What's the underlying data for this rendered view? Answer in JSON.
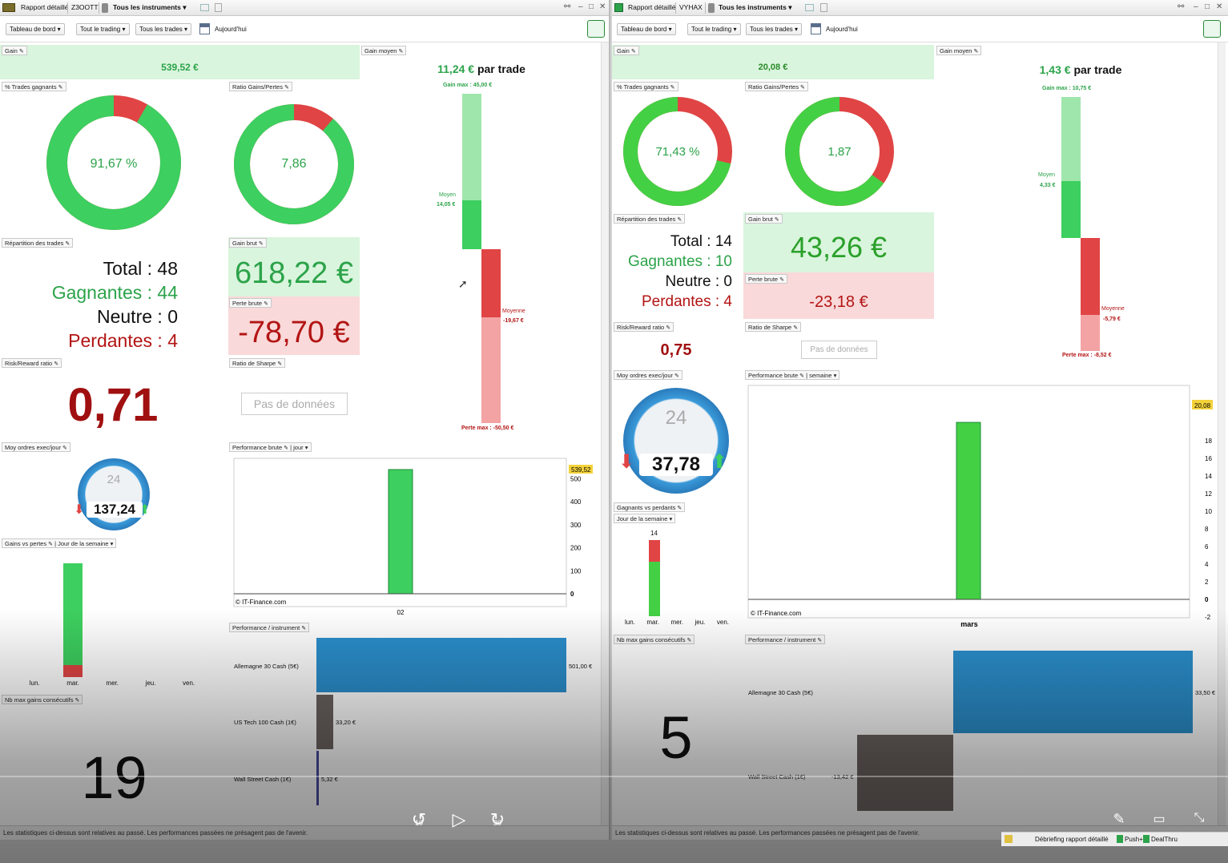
{
  "left": {
    "tab_title": "Rapport détaillé",
    "account": "Z3OOTT",
    "instrument_filter": "Tous les instruments",
    "toolbar": {
      "dashboard": "Tableau de bord",
      "trading": "Tout le trading",
      "trades": "Tous les trades",
      "date": "Aujourd'hui"
    },
    "gain": {
      "label": "Gain",
      "value": "539,52 €"
    },
    "pct_win": {
      "label": "% Trades gagnants",
      "value": "91,67 %",
      "fraction": 0.9167
    },
    "ratio": {
      "label": "Ratio Gains/Pertes",
      "value": "7,86",
      "fraction": 0.887
    },
    "avg_gain": {
      "label": "Gain moyen",
      "value": "11,24 €",
      "suffix": "par trade",
      "max_label": "Gain max : 45,00 €",
      "avg_label": "Moyen",
      "avg_value": "14,05 €",
      "loss_avg_label": "Moyenne",
      "loss_avg_value": "-19,67 €",
      "loss_max_label": "Perte max : -50,50 €"
    },
    "repartition": {
      "label": "Répartition des trades",
      "total_label": "Total",
      "total": "48",
      "win_label": "Gagnantes",
      "win": "44",
      "neutral_label": "Neutre",
      "neutral": "0",
      "loss_label": "Perdantes",
      "loss": "4"
    },
    "gross_gain": {
      "label": "Gain brut",
      "value": "618,22 €"
    },
    "gross_loss": {
      "label": "Perte brute",
      "value": "-78,70 €"
    },
    "rr": {
      "label": "Risk/Reward ratio",
      "value": "0,71"
    },
    "sharpe": {
      "label": "Ratio de Sharpe",
      "value": "Pas de données"
    },
    "orders": {
      "label": "Moy ordres exec/jour",
      "value": "137,24",
      "gauge": "24"
    },
    "perf": {
      "label": "Performance brute",
      "period": "jour",
      "last_value": "539,52",
      "ticks": [
        "500",
        "400",
        "300",
        "200",
        "100",
        "0"
      ],
      "x": [
        "02"
      ],
      "credit": "© IT-Finance.com"
    },
    "gvp": {
      "label": "Gains vs pertes",
      "sel": "Jour de la semaine",
      "days": [
        "lun.",
        "mar.",
        "mer.",
        "jeu.",
        "ven."
      ]
    },
    "maxwins": {
      "label": "Nb max gains consécutifs",
      "value": "19"
    },
    "perf_instr": {
      "label": "Performance / instrument",
      "rows": [
        {
          "name": "Allemagne 30 Cash (5€)",
          "value": "501,00 €"
        },
        {
          "name": "US Tech 100 Cash (1€)",
          "value": "33,20 €"
        },
        {
          "name": "Wall Street Cash (1€)",
          "value": "5,32 €"
        }
      ]
    },
    "disclaimer": "Les statistiques ci-dessus sont relatives au passé. Les performances passées ne présagent pas de l'avenir."
  },
  "right": {
    "tab_title": "Rapport détaillé",
    "account": "VYHAX",
    "instrument_filter": "Tous les instruments",
    "toolbar": {
      "dashboard": "Tableau de bord",
      "trading": "Tout le trading",
      "trades": "Tous les trades",
      "date": "Aujourd'hui"
    },
    "gain": {
      "label": "Gain",
      "value": "20,08 €"
    },
    "pct_win": {
      "label": "% Trades gagnants",
      "value": "71,43 %",
      "fraction": 0.7143
    },
    "ratio": {
      "label": "Ratio Gains/Pertes",
      "value": "1,87",
      "fraction": 0.651
    },
    "avg_gain": {
      "label": "Gain moyen",
      "value": "1,43 €",
      "suffix": "par trade",
      "max_label": "Gain max : 10,75 €",
      "avg_label": "Moyen",
      "avg_value": "4,33 €",
      "loss_avg_label": "Moyenne",
      "loss_avg_value": "-5,79 €",
      "loss_max_label": "Perte max : -8,52 €"
    },
    "repartition": {
      "label": "Répartition des trades",
      "total_label": "Total",
      "total": "14",
      "win_label": "Gagnantes",
      "win": "10",
      "neutral_label": "Neutre",
      "neutral": "0",
      "loss_label": "Perdantes",
      "loss": "4"
    },
    "gross_gain": {
      "label": "Gain brut",
      "value": "43,26 €"
    },
    "gross_loss": {
      "label": "Perte brute",
      "value": "-23,18 €"
    },
    "rr": {
      "label": "Risk/Reward ratio",
      "value": "0,75"
    },
    "sharpe": {
      "label": "Ratio de Sharpe",
      "value": "Pas de données"
    },
    "orders": {
      "label": "Moy ordres exec/jour",
      "value": "37,78",
      "gauge": "24"
    },
    "perf": {
      "label": "Performance brute",
      "period": "semaine",
      "last_value": "20,08",
      "ticks": [
        "22",
        "18",
        "16",
        "14",
        "12",
        "10",
        "8",
        "6",
        "4",
        "2",
        "0",
        "-2"
      ],
      "x": [
        "mars"
      ],
      "credit": "© IT-Finance.com"
    },
    "gvp": {
      "label": "Gagnants vs perdants",
      "sel": "Jour de la semaine",
      "top": "14",
      "days": [
        "lun.",
        "mar.",
        "mer.",
        "jeu.",
        "ven."
      ]
    },
    "maxwins": {
      "label": "Nb max gains consécutifs",
      "value": "5"
    },
    "perf_instr": {
      "label": "Performance / instrument",
      "rows": [
        {
          "name": "Allemagne 30 Cash (5€)",
          "value": "33,50 €"
        },
        {
          "name": "Wall Street Cash (1€)",
          "value": "-13,42 €"
        }
      ]
    },
    "disclaimer": "Les statistiques ci-dessus sont relatives au passé. Les performances passées ne présagent pas de l'avenir."
  },
  "chart_data": [
    {
      "type": "bar",
      "title": "Performance brute",
      "categories": [
        "02"
      ],
      "values": [
        539.52
      ],
      "ylim": [
        0,
        539.52
      ]
    },
    {
      "type": "bar",
      "title": "Performance brute",
      "categories": [
        "mars"
      ],
      "values": [
        20.08
      ],
      "ylim": [
        -2,
        22
      ]
    }
  ],
  "player": {
    "rewind": "10",
    "forward": "30"
  },
  "taskbar": {
    "items": [
      "Débriefing rapport détaillé",
      "Push+",
      "DealThru"
    ]
  },
  "colors": {
    "green": "#3dcf5f",
    "red": "#e04444",
    "light_green": "#d9f5dd",
    "light_red": "#f9d9d9",
    "blue": "#2b8fcc"
  }
}
